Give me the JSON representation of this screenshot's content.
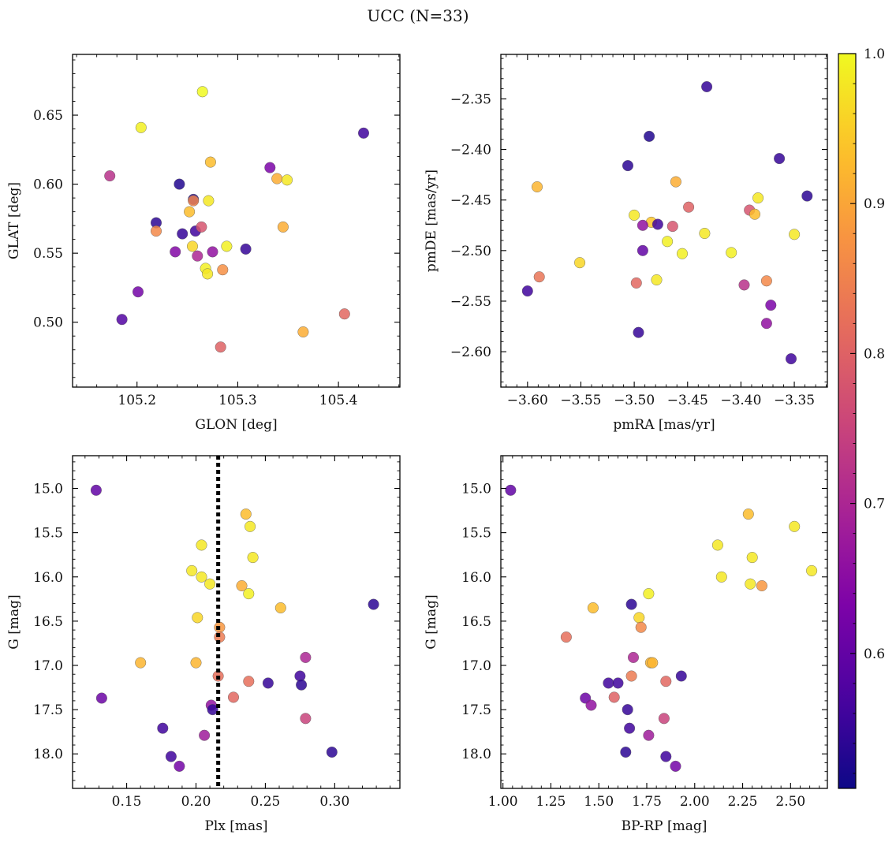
{
  "figure": {
    "title": "UCC (N=33)"
  },
  "colorbar": {
    "range": [
      0.51,
      1.0
    ],
    "ticks": [
      0.6,
      0.7,
      0.8,
      0.9,
      1.0
    ],
    "tick_labels": [
      "0.6",
      "0.7",
      "0.8",
      "0.9",
      "1.0"
    ],
    "colormap": "plasma"
  },
  "chart_data": [
    {
      "type": "scatter",
      "xlabel": "GLON [deg]",
      "ylabel": "GLAT [deg]",
      "xlim": [
        105.136,
        105.461
      ],
      "ylim": [
        0.453,
        0.694
      ],
      "y_inverted": false,
      "xticks": [
        105.2,
        105.3,
        105.4
      ],
      "xtick_labels": [
        "105.2",
        "105.3",
        "105.4"
      ],
      "yticks": [
        0.5,
        0.55,
        0.6,
        0.65
      ],
      "ytick_labels": [
        "0.50",
        "0.55",
        "0.60",
        "0.65"
      ],
      "x": [
        105.265,
        105.204,
        105.425,
        105.173,
        105.273,
        105.332,
        105.339,
        105.349,
        105.242,
        105.256,
        105.219,
        105.271,
        105.252,
        105.245,
        105.258,
        105.264,
        105.289,
        105.255,
        105.308,
        105.275,
        105.238,
        105.26,
        105.268,
        105.27,
        105.285,
        105.219,
        105.345,
        105.201,
        105.185,
        105.406,
        105.283,
        105.365,
        105.256
      ],
      "y": [
        0.667,
        0.641,
        0.637,
        0.606,
        0.616,
        0.612,
        0.604,
        0.603,
        0.6,
        0.589,
        0.572,
        0.588,
        0.58,
        0.564,
        0.566,
        0.569,
        0.555,
        0.555,
        0.553,
        0.551,
        0.551,
        0.548,
        0.539,
        0.535,
        0.538,
        0.566,
        0.569,
        0.522,
        0.502,
        0.506,
        0.482,
        0.493,
        0.588
      ],
      "c": [
        1.0,
        0.99,
        0.56,
        0.72,
        0.93,
        0.63,
        0.91,
        0.98,
        0.53,
        0.53,
        0.54,
        0.98,
        0.93,
        0.55,
        0.56,
        0.78,
        0.99,
        0.96,
        0.55,
        0.66,
        0.64,
        0.7,
        0.99,
        0.98,
        0.87,
        0.86,
        0.91,
        0.62,
        0.58,
        0.81,
        0.8,
        0.91,
        0.85
      ],
      "vline": null
    },
    {
      "type": "scatter",
      "xlabel": "pmRA [mas/yr]",
      "ylabel": "pmDE [mas/yr]",
      "xlim": [
        -3.625,
        -3.319
      ],
      "ylim": [
        -2.635,
        -2.306
      ],
      "y_inverted": false,
      "xticks": [
        -3.6,
        -3.55,
        -3.5,
        -3.45,
        -3.4,
        -3.35
      ],
      "xtick_labels": [
        "−3.60",
        "−3.55",
        "−3.50",
        "−3.45",
        "−3.40",
        "−3.35"
      ],
      "yticks": [
        -2.6,
        -2.55,
        -2.5,
        -2.45,
        -2.4,
        -2.35
      ],
      "ytick_labels": [
        "−2.60",
        "−2.55",
        "−2.50",
        "−2.45",
        "−2.40",
        "−2.35"
      ],
      "x": [
        -3.432,
        -3.486,
        -3.506,
        -3.364,
        -3.338,
        -3.591,
        -3.461,
        -3.384,
        -3.449,
        -3.392,
        -3.387,
        -3.5,
        -3.484,
        -3.464,
        -3.478,
        -3.492,
        -3.434,
        -3.469,
        -3.455,
        -3.409,
        -3.35,
        -3.551,
        -3.492,
        -3.589,
        -3.498,
        -3.479,
        -3.397,
        -3.376,
        -3.372,
        -3.6,
        -3.376,
        -3.496,
        -3.353
      ],
      "y": [
        -2.338,
        -2.387,
        -2.416,
        -2.409,
        -2.446,
        -2.437,
        -2.432,
        -2.448,
        -2.457,
        -2.46,
        -2.464,
        -2.465,
        -2.472,
        -2.476,
        -2.474,
        -2.475,
        -2.483,
        -2.491,
        -2.503,
        -2.502,
        -2.484,
        -2.512,
        -2.5,
        -2.526,
        -2.532,
        -2.529,
        -2.534,
        -2.53,
        -2.554,
        -2.54,
        -2.572,
        -2.581,
        -2.607
      ],
      "c": [
        0.55,
        0.53,
        0.54,
        0.55,
        0.54,
        0.92,
        0.91,
        0.98,
        0.8,
        0.78,
        0.93,
        0.98,
        0.94,
        0.78,
        0.56,
        0.66,
        0.98,
        0.99,
        0.99,
        0.99,
        0.98,
        0.96,
        0.6,
        0.83,
        0.81,
        0.98,
        0.72,
        0.86,
        0.63,
        0.56,
        0.66,
        0.55,
        0.56
      ],
      "vline": null
    },
    {
      "type": "scatter",
      "xlabel": "Plx [mas]",
      "ylabel": "G [mag]",
      "xlim": [
        0.111,
        0.347
      ],
      "ylim": [
        18.39,
        14.63
      ],
      "y_inverted": true,
      "xticks": [
        0.15,
        0.2,
        0.25,
        0.3
      ],
      "xtick_labels": [
        "0.15",
        "0.20",
        "0.25",
        "0.30"
      ],
      "yticks": [
        15.0,
        15.5,
        16.0,
        16.5,
        17.0,
        17.5,
        18.0
      ],
      "ytick_labels": [
        "15.0",
        "15.5",
        "16.0",
        "16.5",
        "17.0",
        "17.5",
        "18.0"
      ],
      "x": [
        0.128,
        0.236,
        0.239,
        0.204,
        0.241,
        0.197,
        0.204,
        0.21,
        0.233,
        0.238,
        0.261,
        0.201,
        0.217,
        0.217,
        0.279,
        0.16,
        0.2,
        0.216,
        0.275,
        0.238,
        0.252,
        0.276,
        0.132,
        0.227,
        0.211,
        0.212,
        0.279,
        0.176,
        0.206,
        0.182,
        0.188,
        0.298,
        0.328
      ],
      "y": [
        15.02,
        15.29,
        15.43,
        15.64,
        15.78,
        15.93,
        16.0,
        16.08,
        16.1,
        16.19,
        16.35,
        16.46,
        16.57,
        16.68,
        16.91,
        16.97,
        16.97,
        17.12,
        17.12,
        17.18,
        17.2,
        17.22,
        17.37,
        17.36,
        17.45,
        17.5,
        17.6,
        17.71,
        17.79,
        18.03,
        18.14,
        17.98,
        16.31
      ],
      "c": [
        0.6,
        0.93,
        0.98,
        0.98,
        0.98,
        0.98,
        0.98,
        0.98,
        0.91,
        0.99,
        0.93,
        0.96,
        0.88,
        0.84,
        0.7,
        0.92,
        0.92,
        0.82,
        0.56,
        0.82,
        0.55,
        0.54,
        0.61,
        0.81,
        0.66,
        0.55,
        0.75,
        0.56,
        0.68,
        0.56,
        0.62,
        0.54,
        0.54
      ],
      "vline": 0.216
    },
    {
      "type": "scatter",
      "xlabel": "BP-RP [mag]",
      "ylabel": "G [mag]",
      "xlim": [
        0.989,
        2.692
      ],
      "ylim": [
        18.39,
        14.63
      ],
      "y_inverted": true,
      "xticks": [
        1.0,
        1.25,
        1.5,
        1.75,
        2.0,
        2.25,
        2.5
      ],
      "xtick_labels": [
        "1.00",
        "1.25",
        "1.50",
        "1.75",
        "2.00",
        "2.25",
        "2.50"
      ],
      "yticks": [
        15.0,
        15.5,
        16.0,
        16.5,
        17.0,
        17.5,
        18.0
      ],
      "ytick_labels": [
        "15.0",
        "15.5",
        "16.0",
        "16.5",
        "17.0",
        "17.5",
        "18.0"
      ],
      "x": [
        1.04,
        2.28,
        2.52,
        2.12,
        2.3,
        2.61,
        2.14,
        2.29,
        2.35,
        1.76,
        1.67,
        1.47,
        1.71,
        1.72,
        1.33,
        1.68,
        1.77,
        1.78,
        1.85,
        1.67,
        1.93,
        1.55,
        1.6,
        1.43,
        1.58,
        1.46,
        1.65,
        1.84,
        1.66,
        1.76,
        1.64,
        1.85,
        1.9
      ],
      "y": [
        15.02,
        15.29,
        15.43,
        15.64,
        15.78,
        15.93,
        16.0,
        16.08,
        16.1,
        16.19,
        16.31,
        16.35,
        16.46,
        16.57,
        16.68,
        16.91,
        16.97,
        16.97,
        17.18,
        17.12,
        17.12,
        17.2,
        17.2,
        17.37,
        17.36,
        17.45,
        17.5,
        17.6,
        17.71,
        17.79,
        17.98,
        18.03,
        18.14
      ],
      "c": [
        0.6,
        0.93,
        0.98,
        0.98,
        0.98,
        0.98,
        0.98,
        0.98,
        0.88,
        0.99,
        0.54,
        0.93,
        0.96,
        0.86,
        0.82,
        0.7,
        0.92,
        0.92,
        0.81,
        0.84,
        0.55,
        0.56,
        0.56,
        0.61,
        0.8,
        0.66,
        0.55,
        0.75,
        0.56,
        0.68,
        0.54,
        0.56,
        0.62
      ],
      "vline": null
    }
  ]
}
